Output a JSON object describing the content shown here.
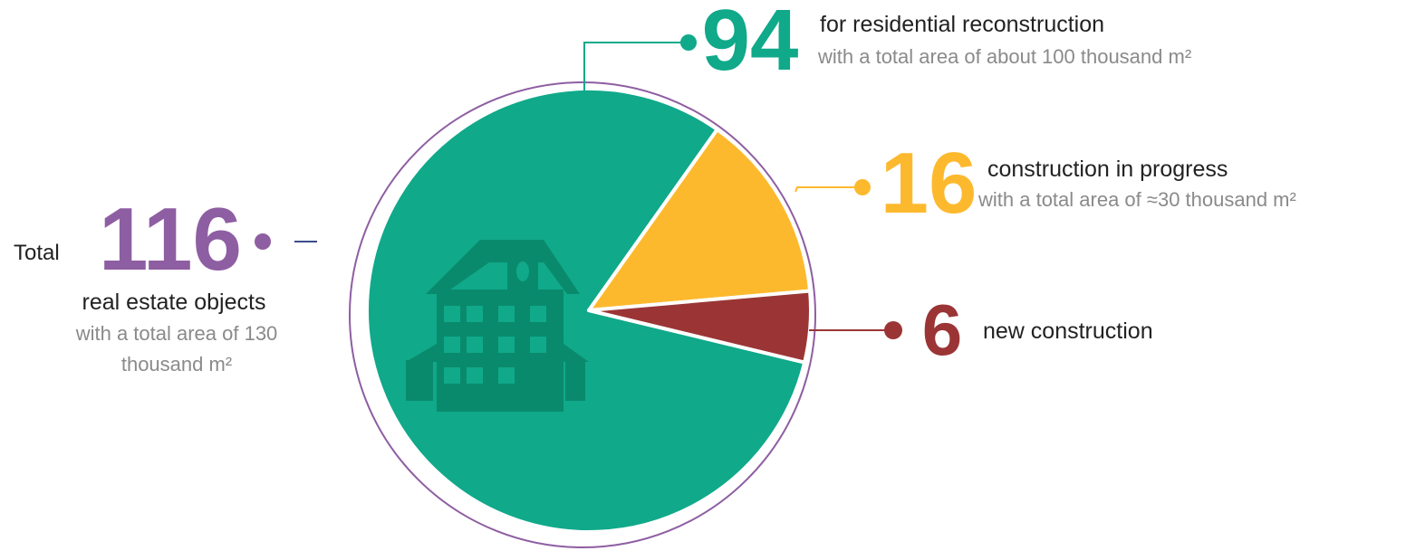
{
  "chart_data": {
    "type": "pie",
    "categories": [
      "for residential reconstruction",
      "construction in progress",
      "new construction"
    ],
    "subtitles": [
      "with a total area of about 100 thousand m²",
      "with a total area of ≈30 thousand m²",
      null
    ],
    "values": [
      94,
      16,
      6
    ],
    "colors": [
      "#10a98a",
      "#fdb92e",
      "#9b3535"
    ],
    "total_label": "Total",
    "total": 116,
    "total_caption": "real estate objects",
    "total_note": "with a total area of 130 thousand m²",
    "total_color": "#8e5ea2"
  }
}
